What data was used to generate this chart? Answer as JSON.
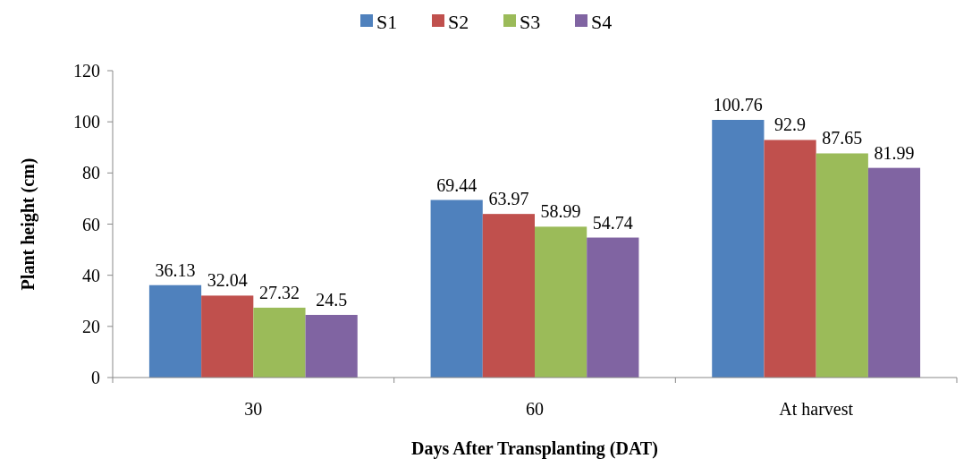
{
  "chart_data": {
    "type": "bar",
    "xlabel": "Days After Transplanting (DAT)",
    "ylabel": "Plant height (cm)",
    "categories": [
      "30",
      "60",
      "At harvest"
    ],
    "series": [
      {
        "name": "S1",
        "color": "#4f81bd",
        "values": [
          36.13,
          69.44,
          100.76
        ]
      },
      {
        "name": "S2",
        "color": "#c0504d",
        "values": [
          32.04,
          63.97,
          92.9
        ]
      },
      {
        "name": "S3",
        "color": "#9bbb59",
        "values": [
          27.32,
          58.99,
          87.65
        ]
      },
      {
        "name": "S4",
        "color": "#8064a2",
        "values": [
          24.5,
          54.74,
          81.99
        ]
      }
    ],
    "ylim": [
      0,
      120
    ],
    "yticks": [
      0,
      20,
      40,
      60,
      80,
      100,
      120
    ],
    "grid": false,
    "legend": "top",
    "data_labels": true
  }
}
